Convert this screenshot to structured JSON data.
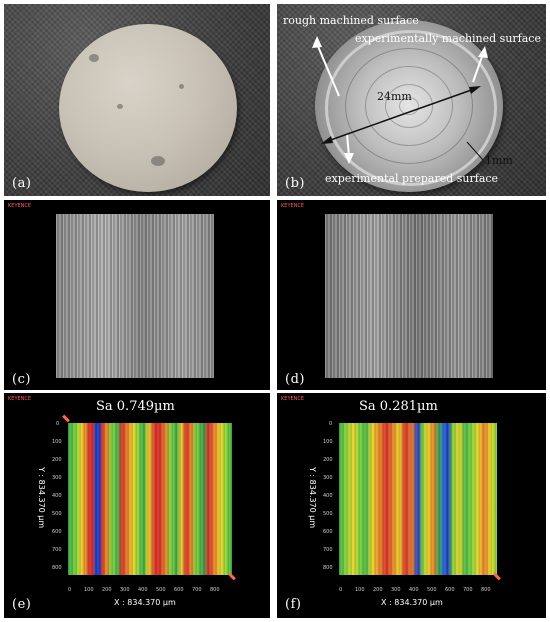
{
  "panels": {
    "a": {
      "label": "(a)"
    },
    "b": {
      "label": "(b)",
      "annotations": {
        "rough": "rough machined surface",
        "experimental_machined": "experimentally machined surface",
        "diameter": "24mm",
        "width": "1mm",
        "prepared": "experimental prepared surface"
      }
    },
    "c": {
      "label": "(c)",
      "logo": "KEYENCE"
    },
    "d": {
      "label": "(d)",
      "logo": "KEYENCE"
    },
    "e": {
      "label": "(e)",
      "sa": "Sa  0.749µm",
      "y_label": "Y : 834.370 µm",
      "x_label": "X : 834.370 µm",
      "x_ticks": [
        "0",
        "100",
        "200",
        "300",
        "400",
        "500",
        "600",
        "700",
        "800"
      ],
      "y_ticks": [
        "0",
        "100",
        "200",
        "300",
        "400",
        "500",
        "600",
        "700",
        "800"
      ]
    },
    "f": {
      "label": "(f)",
      "sa": "Sa  0.281µm",
      "y_label": "Y : 834.370 µm",
      "x_label": "X : 834.370 µm",
      "x_ticks": [
        "0",
        "100",
        "200",
        "300",
        "400",
        "500",
        "600",
        "700",
        "800"
      ],
      "y_ticks": [
        "0",
        "100",
        "200",
        "300",
        "400",
        "500",
        "600",
        "700",
        "800"
      ]
    }
  },
  "colors": {
    "background": "#ffffff",
    "panel_black": "#000000",
    "height_low": "#1b3ec8",
    "height_mid": "#7fd33b",
    "height_high": "#d7332a"
  }
}
